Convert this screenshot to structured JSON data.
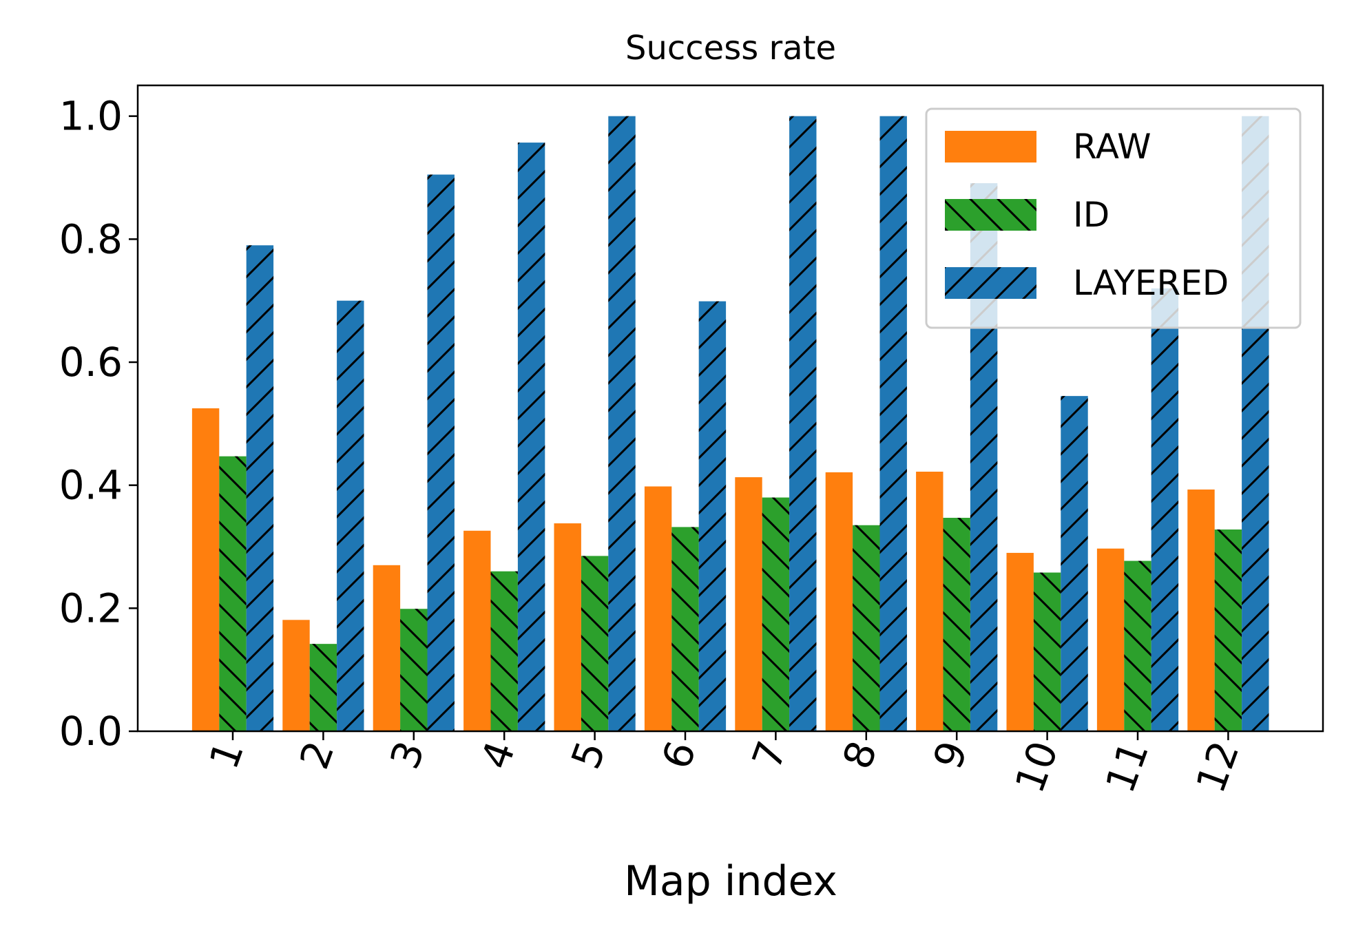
{
  "chart_data": {
    "type": "bar",
    "title": "Success rate",
    "xlabel": "Map index",
    "ylabel": "",
    "categories": [
      "1",
      "2",
      "3",
      "4",
      "5",
      "6",
      "7",
      "8",
      "9",
      "10",
      "11",
      "12"
    ],
    "series": [
      {
        "name": "RAW",
        "color": "#ff7f0e",
        "hatch": "none",
        "values": [
          0.525,
          0.181,
          0.27,
          0.326,
          0.338,
          0.398,
          0.413,
          0.421,
          0.422,
          0.29,
          0.297,
          0.393
        ]
      },
      {
        "name": "ID",
        "color": "#2ca02c",
        "hatch": "backslash",
        "values": [
          0.447,
          0.142,
          0.199,
          0.26,
          0.285,
          0.332,
          0.38,
          0.335,
          0.347,
          0.258,
          0.277,
          0.328
        ]
      },
      {
        "name": "LAYERED",
        "color": "#1f77b4",
        "hatch": "slash",
        "values": [
          0.79,
          0.7,
          0.905,
          0.957,
          1.0,
          0.699,
          1.0,
          1.0,
          0.891,
          0.545,
          0.72,
          1.0
        ]
      }
    ],
    "ylim": [
      0,
      1.05
    ],
    "yticks": [
      "0.0",
      "0.2",
      "0.4",
      "0.6",
      "0.8",
      "1.0"
    ],
    "xtick_rotation": "70°",
    "grid": false,
    "legend": "upper-right"
  }
}
